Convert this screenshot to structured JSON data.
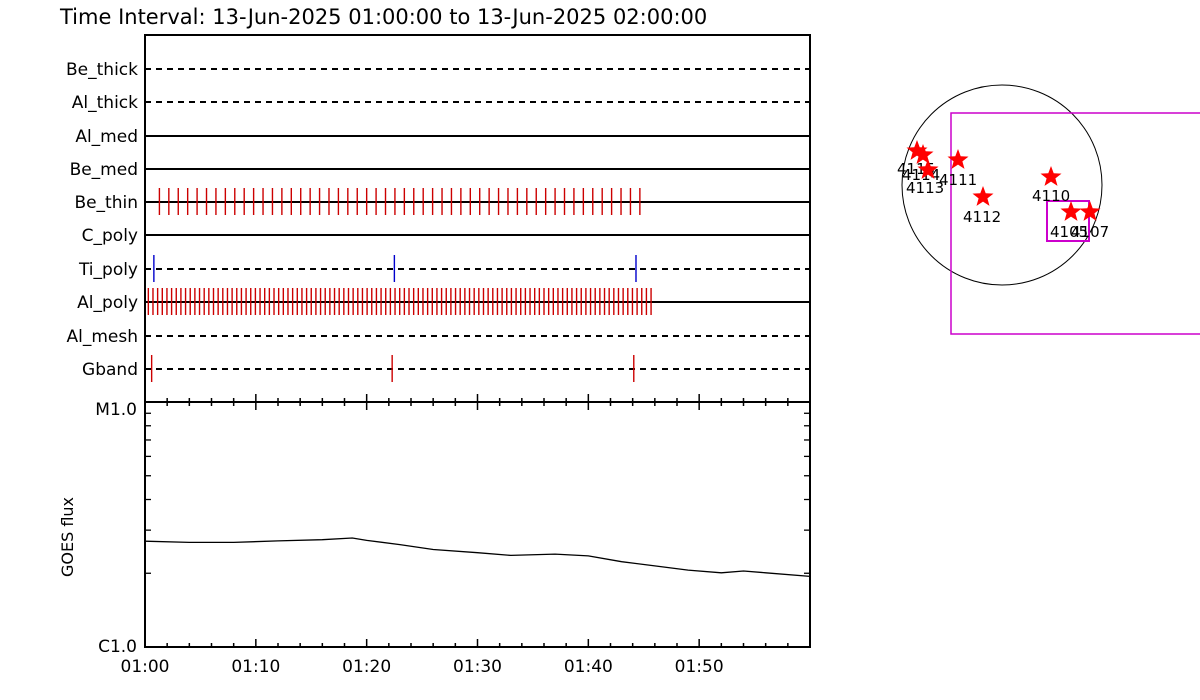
{
  "title": "Time Interval: 13-Jun-2025 01:00:00 to 13-Jun-2025 02:00:00",
  "chart_data": [
    {
      "type": "event-timeline",
      "time_range": [
        "13-Jun-2025 01:00:00",
        "13-Jun-2025 02:00:00"
      ],
      "rows": [
        {
          "name": "Be_thick",
          "line": "dashed",
          "events": [],
          "color": "#000000"
        },
        {
          "name": "Al_thick",
          "line": "dashed",
          "events": [],
          "color": "#000000"
        },
        {
          "name": "Al_med",
          "line": "solid",
          "events": [],
          "color": "#000000"
        },
        {
          "name": "Be_med",
          "line": "solid",
          "events": [],
          "color": "#000000"
        },
        {
          "name": "Be_thin",
          "line": "solid",
          "color": "#cc0000",
          "events_every_min": 0.85,
          "events_start_min": 1.3,
          "events_end_min": 45.2
        },
        {
          "name": "C_poly",
          "line": "solid",
          "events": [],
          "color": "#000000"
        },
        {
          "name": "Ti_poly",
          "line": "dashed",
          "color": "#0000cc",
          "events_min": [
            0.8,
            22.5,
            44.3
          ]
        },
        {
          "name": "Al_poly",
          "line": "solid",
          "color": "#cc0000",
          "events_every_min": 0.42,
          "events_start_min": 0.3,
          "events_end_min": 46.0
        },
        {
          "name": "Al_mesh",
          "line": "dashed",
          "events": [],
          "color": "#000000"
        },
        {
          "name": "Gband",
          "line": "dashed",
          "color": "#cc0000",
          "events_min": [
            0.6,
            22.3,
            44.1
          ]
        }
      ]
    },
    {
      "type": "line",
      "ylabel": "GOES flux",
      "ytick_labels": [
        "M1.0",
        "C1.0"
      ],
      "xtick_labels": [
        "01:00",
        "01:10",
        "01:20",
        "01:30",
        "01:40",
        "01:50"
      ],
      "x_min": [
        0,
        4,
        8,
        12,
        16,
        18.7,
        20,
        23,
        26,
        30,
        33,
        37,
        40,
        43,
        46,
        49,
        52,
        54,
        56,
        60
      ],
      "y_frac": [
        0.432,
        0.427,
        0.427,
        0.433,
        0.438,
        0.445,
        0.435,
        0.418,
        0.398,
        0.385,
        0.374,
        0.379,
        0.372,
        0.348,
        0.331,
        0.314,
        0.303,
        0.31,
        0.303,
        0.288
      ]
    },
    {
      "type": "solar-map",
      "regions": [
        {
          "id": "4115",
          "label": "4115"
        },
        {
          "id": "4114",
          "label": "4114"
        },
        {
          "id": "4113",
          "label": "4113"
        },
        {
          "id": "4111",
          "label": "4111"
        },
        {
          "id": "4112",
          "label": "4112"
        },
        {
          "id": "4110",
          "label": "4110"
        },
        {
          "id": "4105",
          "label": "4105"
        },
        {
          "id": "4107",
          "label": "4107"
        }
      ],
      "star_color": "#ff0000",
      "box_color": "#cc00cc"
    }
  ]
}
